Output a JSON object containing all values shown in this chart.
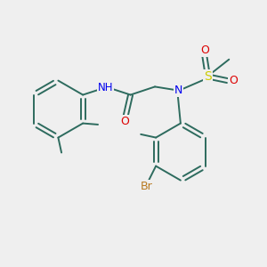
{
  "background_color": "#efefef",
  "bond_color": "#2d6b5e",
  "atom_colors": {
    "N": "#0000ee",
    "O": "#dd0000",
    "S": "#cccc00",
    "Br": "#b87820",
    "H": "#2d6b5e"
  },
  "bond_width": 1.4,
  "figsize": [
    3.0,
    3.0
  ],
  "dpi": 100
}
